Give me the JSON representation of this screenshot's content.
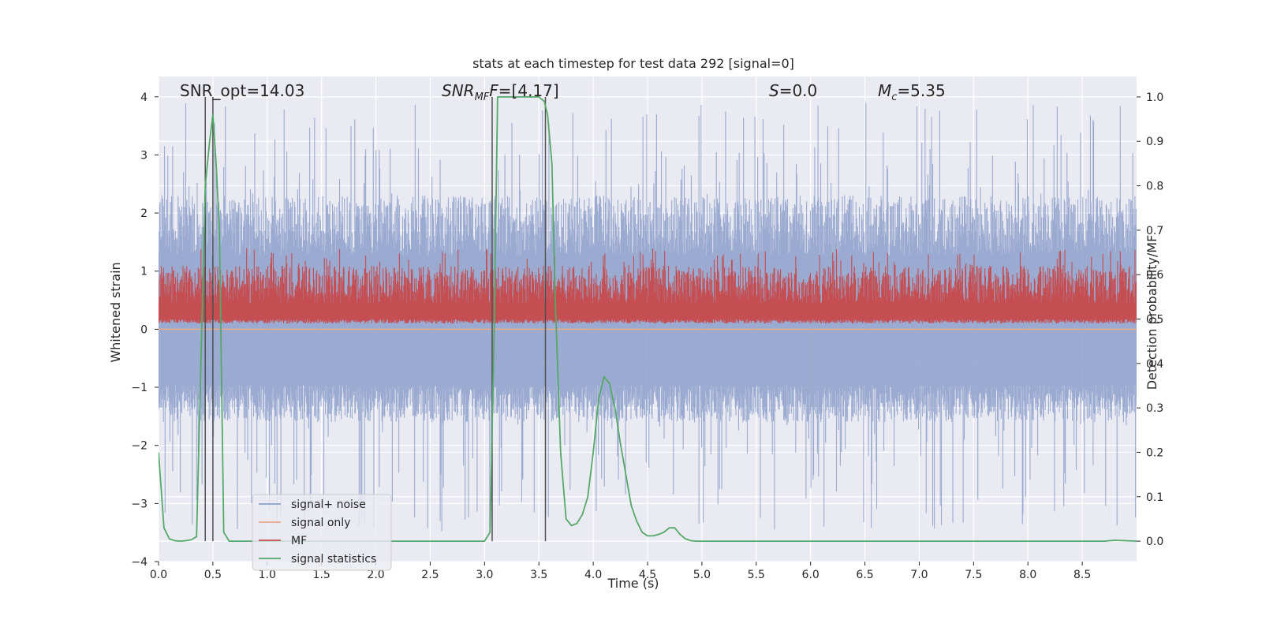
{
  "chart_data": {
    "type": "line",
    "title": "stats at each timestep for test data 292 [signal=0]",
    "xlabel": "Time (s)",
    "ylabel_left": "Whitened strain",
    "ylabel_right": "Detection probability/MF",
    "xlim": [
      0.0,
      9.0
    ],
    "ylim_left": [
      -4.0,
      4.35
    ],
    "ylim_right": [
      -0.046,
      1.046
    ],
    "xticks": [
      "0.0",
      "0.5",
      "1.0",
      "1.5",
      "2.0",
      "2.5",
      "3.0",
      "3.5",
      "4.0",
      "4.5",
      "5.0",
      "5.5",
      "6.0",
      "6.5",
      "7.0",
      "7.5",
      "8.0",
      "8.5"
    ],
    "yticks_left": [
      "4",
      "3",
      "2",
      "1",
      "0",
      "−1",
      "−2",
      "−3",
      "−4"
    ],
    "yticks_right": [
      "1.0",
      "0.9",
      "0.8",
      "0.7",
      "0.6",
      "0.5",
      "0.4",
      "0.3",
      "0.2",
      "0.1",
      "0.0"
    ],
    "grid": true,
    "annotations": {
      "snr_opt": "SNR_opt=14.03",
      "snr_mf_main": "SNR",
      "snr_mf_sub": "MF",
      "snr_mf_value": "=[4.17]",
      "s_main": "S",
      "s_value": "=0.0",
      "mc_main": "M",
      "mc_sub": "c",
      "mc_value": "=5.35"
    },
    "vlines": [
      0.43,
      0.5,
      3.07,
      3.56
    ],
    "legend": {
      "placement": "lower-left",
      "entries": [
        {
          "label": "signal+ noise",
          "color": "#8c9fca"
        },
        {
          "label": "signal only",
          "color": "#e9a88a"
        },
        {
          "label": "MF",
          "color": "#c44e52"
        },
        {
          "label": "signal statistics",
          "color": "#55a868"
        }
      ]
    },
    "series": [
      {
        "name": "signal+ noise",
        "axis": "left",
        "color": "#8c9fca",
        "style": "noise",
        "envelope_typical": [
          -1.6,
          2.3
        ],
        "peak_range": [
          -3.5,
          3.9
        ]
      },
      {
        "name": "signal only",
        "axis": "left",
        "color": "#e9a88a",
        "x": [
          0.0,
          9.0
        ],
        "y": [
          0.0,
          0.0
        ]
      },
      {
        "name": "MF",
        "axis": "right",
        "color": "#c44e52",
        "style": "noise",
        "envelope_typical": [
          0.49,
          0.62
        ],
        "peak_range": [
          0.49,
          0.66
        ]
      },
      {
        "name": "signal statistics",
        "axis": "right",
        "color": "#55a868",
        "x": [
          0.0,
          0.05,
          0.1,
          0.15,
          0.2,
          0.25,
          0.3,
          0.35,
          0.4,
          0.43,
          0.47,
          0.5,
          0.53,
          0.56,
          0.6,
          0.65,
          0.7,
          1.0,
          1.5,
          2.0,
          2.5,
          3.0,
          3.05,
          3.09,
          3.12,
          3.15,
          3.2,
          3.3,
          3.4,
          3.5,
          3.55,
          3.58,
          3.62,
          3.65,
          3.7,
          3.75,
          3.8,
          3.85,
          3.9,
          3.95,
          4.0,
          4.05,
          4.1,
          4.15,
          4.2,
          4.25,
          4.3,
          4.35,
          4.4,
          4.45,
          4.5,
          4.55,
          4.6,
          4.65,
          4.7,
          4.75,
          4.8,
          4.85,
          4.9,
          4.95,
          5.0,
          5.1,
          5.5,
          6.0,
          7.0,
          8.0,
          8.7,
          8.8,
          8.9,
          9.0
        ],
        "y": [
          0.2,
          0.03,
          0.005,
          0.001,
          0.0,
          0.001,
          0.003,
          0.01,
          0.5,
          0.8,
          0.9,
          0.96,
          0.85,
          0.7,
          0.02,
          0.0,
          0.0,
          0.0,
          0.0,
          0.0,
          0.0,
          0.0,
          0.02,
          0.5,
          1.0,
          1.0,
          1.0,
          1.0,
          1.0,
          1.0,
          0.99,
          0.96,
          0.85,
          0.55,
          0.2,
          0.05,
          0.035,
          0.04,
          0.06,
          0.1,
          0.2,
          0.32,
          0.37,
          0.355,
          0.3,
          0.22,
          0.15,
          0.08,
          0.045,
          0.02,
          0.012,
          0.012,
          0.015,
          0.02,
          0.03,
          0.03,
          0.015,
          0.005,
          0.001,
          0.0,
          0.0,
          0.0,
          0.0,
          0.0,
          0.0,
          0.0,
          0.0,
          0.002,
          0.001,
          0.0
        ]
      }
    ]
  }
}
